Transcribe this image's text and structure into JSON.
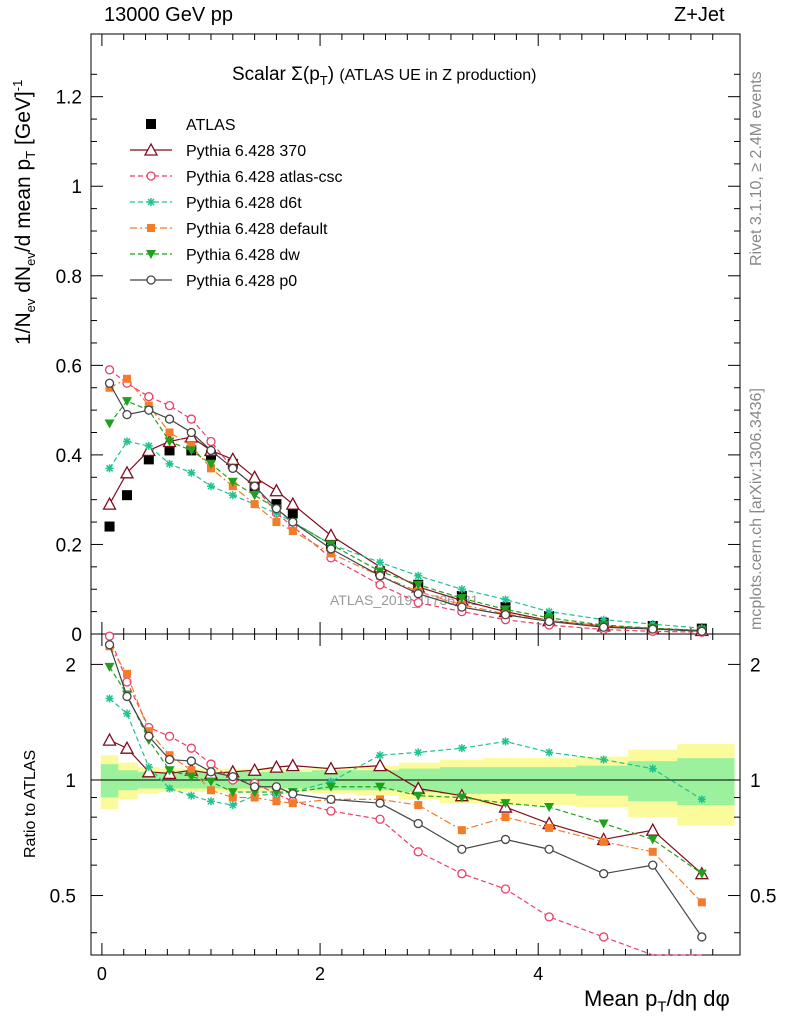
{
  "header": {
    "left": "13000 GeV pp",
    "right": "Z+Jet"
  },
  "side_labels": {
    "rivet": "Rivet 3.1.10, ≥ 2.4M events",
    "mcplots": "mcplots.cern.ch [arXiv:1306.3436]"
  },
  "plot_title": {
    "main": "Scalar Σ(p",
    "sub": "T",
    "tail": ")",
    "note": "(ATLAS UE in Z production)"
  },
  "watermark": "ATLAS_2019_I1736531",
  "axes": {
    "ylabel_main": "1/N_ev dN_ev/d mean p_T [GeV]^-1",
    "ylabel_ratio": "Ratio to ATLAS",
    "xlabel": "Mean p_T/dη dφ",
    "main_yticks": [
      "0",
      "0.2",
      "0.4",
      "0.6",
      "0.8",
      "1",
      "1.2"
    ],
    "ratio_yticks": [
      "0.5",
      "1",
      "2"
    ],
    "xticks": [
      "0",
      "2",
      "4"
    ]
  },
  "legend": [
    {
      "label": "ATLAS",
      "color": "#000000",
      "marker": "square",
      "style": "none"
    },
    {
      "label": "Pythia 6.428 370",
      "color": "#7f0d1e",
      "marker": "open-triangle",
      "style": "solid"
    },
    {
      "label": "Pythia 6.428 atlas-csc",
      "color": "#ea3f66",
      "marker": "open-circle",
      "style": "dashed"
    },
    {
      "label": "Pythia 6.428 d6t",
      "color": "#1fc38f",
      "marker": "star",
      "style": "dashed"
    },
    {
      "label": "Pythia 6.428 default",
      "color": "#f27c2a",
      "marker": "filled-square",
      "style": "dashdot"
    },
    {
      "label": "Pythia 6.428 dw",
      "color": "#1fa11d",
      "marker": "filled-triangle-down",
      "style": "dashed"
    },
    {
      "label": "Pythia 6.428 p0",
      "color": "#454545",
      "marker": "open-circle",
      "style": "solid"
    }
  ],
  "chart_data": [
    {
      "type": "line",
      "panel": "main",
      "xlim": [
        -0.1,
        5.85
      ],
      "ylim": [
        0,
        1.34
      ],
      "x": [
        0.07,
        0.23,
        0.43,
        0.62,
        0.82,
        1.0,
        1.2,
        1.4,
        1.6,
        1.75,
        2.1,
        2.55,
        2.9,
        3.3,
        3.7,
        4.1,
        4.6,
        5.05,
        5.5
      ],
      "series": [
        {
          "name": "ATLAS",
          "values": [
            0.24,
            0.31,
            0.39,
            0.41,
            0.41,
            0.4,
            0.38,
            0.33,
            0.29,
            0.27,
            0.2,
            0.14,
            0.11,
            0.085,
            0.06,
            0.04,
            0.025,
            0.018,
            0.012
          ]
        },
        {
          "name": "Pythia 6.428 370",
          "values": [
            0.29,
            0.36,
            0.41,
            0.43,
            0.44,
            0.41,
            0.39,
            0.35,
            0.32,
            0.29,
            0.22,
            0.15,
            0.105,
            0.075,
            0.05,
            0.03,
            0.018,
            0.012,
            0.008
          ]
        },
        {
          "name": "Pythia 6.428 atlas-csc",
          "values": [
            0.59,
            0.56,
            0.53,
            0.51,
            0.48,
            0.43,
            0.37,
            0.33,
            0.27,
            0.24,
            0.17,
            0.11,
            0.07,
            0.05,
            0.032,
            0.02,
            0.01,
            0.006,
            0.004
          ]
        },
        {
          "name": "Pythia 6.428 d6t",
          "values": [
            0.37,
            0.43,
            0.42,
            0.38,
            0.36,
            0.33,
            0.31,
            0.29,
            0.27,
            0.25,
            0.2,
            0.16,
            0.13,
            0.1,
            0.077,
            0.05,
            0.032,
            0.022,
            0.013
          ]
        },
        {
          "name": "Pythia 6.428 default",
          "values": [
            0.55,
            0.57,
            0.51,
            0.45,
            0.42,
            0.37,
            0.33,
            0.29,
            0.25,
            0.23,
            0.18,
            0.13,
            0.095,
            0.065,
            0.045,
            0.03,
            0.018,
            0.012,
            0.007
          ]
        },
        {
          "name": "Pythia 6.428 dw",
          "values": [
            0.47,
            0.52,
            0.5,
            0.43,
            0.41,
            0.38,
            0.34,
            0.31,
            0.28,
            0.25,
            0.2,
            0.14,
            0.11,
            0.08,
            0.055,
            0.036,
            0.02,
            0.013,
            0.008
          ]
        },
        {
          "name": "Pythia 6.428 p0",
          "values": [
            0.56,
            0.49,
            0.5,
            0.48,
            0.45,
            0.41,
            0.37,
            0.33,
            0.28,
            0.25,
            0.19,
            0.13,
            0.09,
            0.06,
            0.043,
            0.028,
            0.015,
            0.011,
            0.006
          ]
        }
      ]
    },
    {
      "type": "line",
      "panel": "ratio",
      "ylim": [
        0.35,
        2.4
      ],
      "scale": "log",
      "band_inner": [
        0.1,
        0.06,
        0.05,
        0.05,
        0.05,
        0.05,
        0.05,
        0.05,
        0.05,
        0.05,
        0.06,
        0.06,
        0.07,
        0.08,
        0.08,
        0.08,
        0.09,
        0.12,
        0.14
      ],
      "band_outer": [
        0.16,
        0.11,
        0.08,
        0.07,
        0.07,
        0.07,
        0.07,
        0.07,
        0.07,
        0.07,
        0.08,
        0.09,
        0.11,
        0.13,
        0.14,
        0.14,
        0.15,
        0.2,
        0.24
      ],
      "series": [
        {
          "name": "Pythia 6.428 370",
          "values": [
            1.27,
            1.21,
            1.05,
            1.04,
            1.06,
            1.04,
            1.05,
            1.06,
            1.08,
            1.09,
            1.07,
            1.09,
            0.95,
            0.91,
            0.85,
            0.77,
            0.7,
            0.74,
            0.57
          ]
        },
        {
          "name": "Pythia 6.428 atlas-csc",
          "values": [
            2.37,
            1.8,
            1.37,
            1.3,
            1.21,
            1.1,
            1.0,
            0.98,
            0.92,
            0.88,
            0.83,
            0.79,
            0.65,
            0.57,
            0.52,
            0.44,
            0.39,
            0.34,
            0.3
          ]
        },
        {
          "name": "Pythia 6.428 d6t",
          "values": [
            1.63,
            1.49,
            1.08,
            0.95,
            0.91,
            0.88,
            0.86,
            0.91,
            0.92,
            0.93,
            0.99,
            1.16,
            1.18,
            1.21,
            1.26,
            1.18,
            1.13,
            1.07,
            0.89
          ]
        },
        {
          "name": "Pythia 6.428 default",
          "values": [
            2.23,
            1.89,
            1.34,
            1.16,
            1.06,
            0.94,
            0.9,
            0.9,
            0.88,
            0.87,
            0.89,
            0.89,
            0.86,
            0.74,
            0.8,
            0.75,
            0.69,
            0.65,
            0.48
          ]
        },
        {
          "name": "Pythia 6.428 dw",
          "values": [
            1.97,
            1.67,
            1.27,
            1.06,
            1.02,
            0.99,
            0.93,
            0.93,
            0.93,
            0.93,
            0.96,
            0.96,
            0.91,
            0.9,
            0.87,
            0.85,
            0.77,
            0.7,
            0.57
          ]
        },
        {
          "name": "Pythia 6.428 p0",
          "values": [
            2.25,
            1.65,
            1.3,
            1.13,
            1.12,
            1.05,
            1.02,
            0.96,
            0.96,
            0.92,
            0.89,
            0.87,
            0.77,
            0.66,
            0.7,
            0.66,
            0.57,
            0.6,
            0.39
          ]
        }
      ]
    }
  ]
}
